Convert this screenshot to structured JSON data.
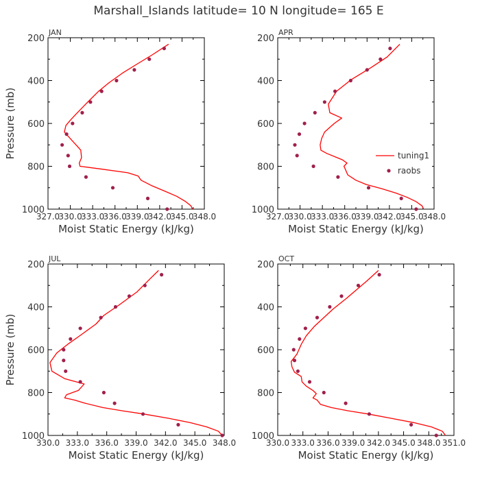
{
  "title": "Marshall_Islands  latitude= 10 N longitude= 165 E",
  "legend": {
    "model_label": "tuning1",
    "obs_label": "raobs",
    "placement": "inside APR panel, lower right"
  },
  "colors": {
    "model": "#ff0000",
    "obs": "#a0204c",
    "text": "#333333",
    "axis": "#000000"
  },
  "chart_data": [
    {
      "type": "line",
      "panel_label": "JAN",
      "xlabel": "Moist Static Energy (kJ/kg)",
      "ylabel": "Pressure (mb)",
      "xlim": [
        327.0,
        348.0
      ],
      "ylim": [
        1000,
        200
      ],
      "xticks": [
        "327.0",
        "330.0",
        "333.0",
        "336.0",
        "339.0",
        "342.0",
        "345.0",
        "348.0"
      ],
      "yticks": [
        "200",
        "400",
        "600",
        "800",
        "1000"
      ],
      "series": [
        {
          "name": "tuning1",
          "points": [
            [
              346.4,
              1000
            ],
            [
              346.2,
              985
            ],
            [
              345.5,
              965
            ],
            [
              344.3,
              940
            ],
            [
              342.6,
              915
            ],
            [
              340.9,
              890
            ],
            [
              339.5,
              865
            ],
            [
              339.1,
              845
            ],
            [
              337.7,
              830
            ],
            [
              334.0,
              812
            ],
            [
              331.3,
              800
            ],
            [
              331.2,
              785
            ],
            [
              331.5,
              760
            ],
            [
              331.4,
              725
            ],
            [
              330.9,
              705
            ],
            [
              330.1,
              675
            ],
            [
              329.2,
              640
            ],
            [
              329.4,
              610
            ],
            [
              330.0,
              585
            ],
            [
              330.8,
              555
            ],
            [
              332.2,
              505
            ],
            [
              333.8,
              450
            ],
            [
              335.2,
              410
            ],
            [
              337.0,
              365
            ],
            [
              339.1,
              320
            ],
            [
              341.0,
              280
            ],
            [
              343.2,
              230
            ]
          ]
        },
        {
          "name": "raobs",
          "points": [
            [
              343.0,
              1000
            ],
            [
              340.4,
              950
            ],
            [
              335.7,
              900
            ],
            [
              332.1,
              850
            ],
            [
              329.9,
              800
            ],
            [
              329.7,
              750
            ],
            [
              328.9,
              700
            ],
            [
              329.5,
              650
            ],
            [
              330.3,
              600
            ],
            [
              331.6,
              550
            ],
            [
              332.7,
              500
            ],
            [
              334.2,
              450
            ],
            [
              336.2,
              400
            ],
            [
              338.6,
              350
            ],
            [
              340.6,
              300
            ],
            [
              342.6,
              250
            ]
          ]
        }
      ]
    },
    {
      "type": "line",
      "panel_label": "APR",
      "xlabel": "Moist Static Energy (kJ/kg)",
      "ylabel": "",
      "xlim": [
        327.0,
        348.0
      ],
      "ylim": [
        1000,
        200
      ],
      "xticks": [
        "327.0",
        "330.0",
        "333.0",
        "336.0",
        "339.0",
        "342.0",
        "345.0",
        "348.0"
      ],
      "yticks": [
        "200",
        "400",
        "600",
        "800",
        "1000"
      ],
      "series": [
        {
          "name": "tuning1",
          "points": [
            [
              346.6,
              1000
            ],
            [
              346.4,
              985
            ],
            [
              345.6,
              965
            ],
            [
              344.4,
              945
            ],
            [
              342.9,
              925
            ],
            [
              341.0,
              905
            ],
            [
              338.9,
              885
            ],
            [
              337.5,
              865
            ],
            [
              336.4,
              840
            ],
            [
              336.1,
              815
            ],
            [
              335.9,
              800
            ],
            [
              336.3,
              785
            ],
            [
              335.7,
              770
            ],
            [
              335.0,
              760
            ],
            [
              333.6,
              740
            ],
            [
              332.8,
              725
            ],
            [
              332.7,
              700
            ],
            [
              332.9,
              670
            ],
            [
              333.3,
              640
            ],
            [
              334.6,
              600
            ],
            [
              335.6,
              575
            ],
            [
              334.0,
              550
            ],
            [
              333.8,
              510
            ],
            [
              334.9,
              450
            ],
            [
              336.9,
              395
            ],
            [
              339.5,
              340
            ],
            [
              341.7,
              290
            ],
            [
              343.4,
              230
            ]
          ]
        },
        {
          "name": "raobs",
          "points": [
            [
              345.6,
              1000
            ],
            [
              343.6,
              950
            ],
            [
              339.2,
              900
            ],
            [
              335.1,
              850
            ],
            [
              331.8,
              800
            ],
            [
              329.6,
              750
            ],
            [
              329.3,
              700
            ],
            [
              329.9,
              650
            ],
            [
              330.6,
              600
            ],
            [
              332.0,
              550
            ],
            [
              333.3,
              500
            ],
            [
              334.7,
              450
            ],
            [
              336.8,
              400
            ],
            [
              339.0,
              350
            ],
            [
              340.8,
              300
            ],
            [
              342.1,
              250
            ]
          ]
        }
      ]
    },
    {
      "type": "line",
      "panel_label": "JUL",
      "xlabel": "Moist Static Energy (kJ/kg)",
      "ylabel": "Pressure (mb)",
      "xlim": [
        330.0,
        348.0
      ],
      "ylim": [
        1000,
        200
      ],
      "xticks": [
        "330.0",
        "333.0",
        "336.0",
        "339.0",
        "342.0",
        "345.0",
        "348.0"
      ],
      "yticks": [
        "200",
        "400",
        "600",
        "800",
        "1000"
      ],
      "series": [
        {
          "name": "tuning1",
          "points": [
            [
              347.8,
              1000
            ],
            [
              347.4,
              980
            ],
            [
              346.2,
              960
            ],
            [
              344.5,
              940
            ],
            [
              342.3,
              920
            ],
            [
              339.8,
              900
            ],
            [
              337.6,
              885
            ],
            [
              335.6,
              870
            ],
            [
              333.8,
              850
            ],
            [
              332.7,
              835
            ],
            [
              331.7,
              825
            ],
            [
              331.9,
              810
            ],
            [
              333.1,
              790
            ],
            [
              333.7,
              760
            ],
            [
              331.7,
              735
            ],
            [
              330.4,
              700
            ],
            [
              330.2,
              660
            ],
            [
              330.9,
              615
            ],
            [
              332.0,
              575
            ],
            [
              333.4,
              530
            ],
            [
              334.9,
              480
            ],
            [
              335.7,
              440
            ],
            [
              337.3,
              390
            ],
            [
              339.1,
              330
            ],
            [
              340.4,
              270
            ],
            [
              341.3,
              230
            ]
          ]
        },
        {
          "name": "raobs",
          "points": [
            [
              347.8,
              1000
            ],
            [
              343.3,
              950
            ],
            [
              339.7,
              900
            ],
            [
              336.8,
              850
            ],
            [
              335.7,
              800
            ],
            [
              333.3,
              750
            ],
            [
              331.8,
              700
            ],
            [
              331.6,
              650
            ],
            [
              331.6,
              600
            ],
            [
              332.3,
              550
            ],
            [
              333.3,
              500
            ],
            [
              335.4,
              450
            ],
            [
              336.9,
              400
            ],
            [
              338.3,
              350
            ],
            [
              339.9,
              300
            ],
            [
              341.6,
              250
            ]
          ]
        }
      ]
    },
    {
      "type": "line",
      "panel_label": "OCT",
      "xlabel": "Moist Static Energy (kJ/kg)",
      "ylabel": "",
      "xlim": [
        330.0,
        351.0
      ],
      "ylim": [
        1000,
        200
      ],
      "xticks": [
        "330.0",
        "333.0",
        "336.0",
        "339.0",
        "342.0",
        "345.0",
        "348.0",
        "351.0"
      ],
      "yticks": [
        "200",
        "400",
        "600",
        "800",
        "1000"
      ],
      "series": [
        {
          "name": "tuning1",
          "points": [
            [
              350.0,
              1000
            ],
            [
              349.6,
              980
            ],
            [
              348.3,
              960
            ],
            [
              346.2,
              940
            ],
            [
              343.5,
              920
            ],
            [
              340.8,
              900
            ],
            [
              338.4,
              885
            ],
            [
              336.4,
              870
            ],
            [
              335.1,
              855
            ],
            [
              334.7,
              835
            ],
            [
              334.2,
              825
            ],
            [
              334.6,
              805
            ],
            [
              334.2,
              790
            ],
            [
              333.4,
              770
            ],
            [
              332.9,
              750
            ],
            [
              332.8,
              725
            ],
            [
              332.0,
              705
            ],
            [
              331.7,
              680
            ],
            [
              331.6,
              655
            ],
            [
              332.3,
              620
            ],
            [
              332.8,
              575
            ],
            [
              333.4,
              535
            ],
            [
              334.4,
              490
            ],
            [
              335.5,
              450
            ],
            [
              336.6,
              410
            ],
            [
              338.2,
              360
            ],
            [
              339.4,
              320
            ],
            [
              340.6,
              280
            ],
            [
              342.0,
              230
            ]
          ]
        },
        {
          "name": "raobs",
          "points": [
            [
              348.9,
              1000
            ],
            [
              345.9,
              950
            ],
            [
              340.9,
              900
            ],
            [
              338.1,
              850
            ],
            [
              335.5,
              800
            ],
            [
              333.8,
              750
            ],
            [
              332.4,
              700
            ],
            [
              332.0,
              650
            ],
            [
              331.9,
              600
            ],
            [
              332.6,
              550
            ],
            [
              333.3,
              500
            ],
            [
              334.7,
              450
            ],
            [
              336.2,
              400
            ],
            [
              337.6,
              350
            ],
            [
              339.6,
              300
            ],
            [
              342.1,
              250
            ]
          ]
        }
      ]
    }
  ]
}
